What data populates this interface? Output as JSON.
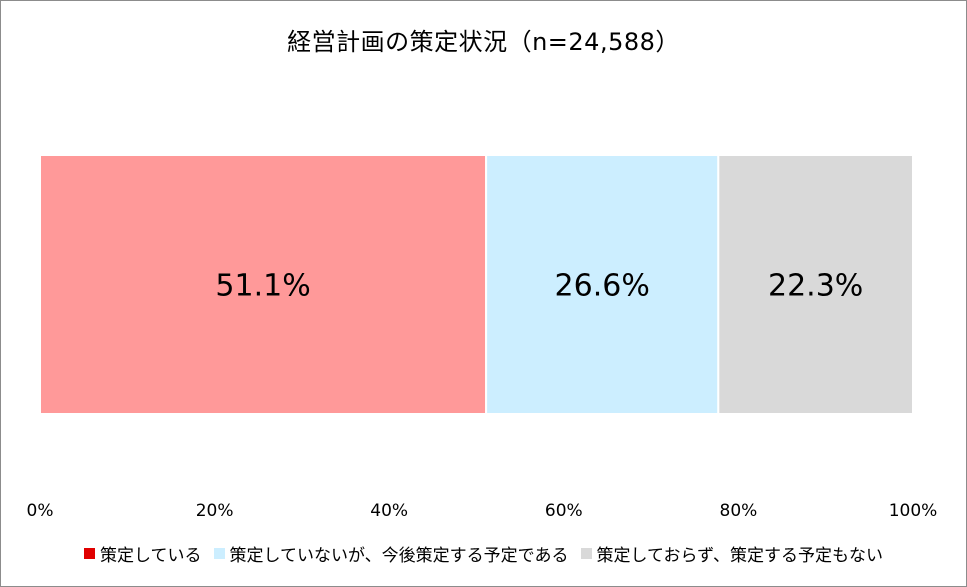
{
  "chart_data": {
    "type": "bar",
    "orientation": "horizontal",
    "stacked": true,
    "percent_stacked": true,
    "title": "経営計画の策定状況（n=24,588）",
    "categories": [
      ""
    ],
    "series": [
      {
        "name": "策定している",
        "values": [
          51.1
        ],
        "label": "51.1%",
        "color": "#ff9999",
        "legend_color": "#e00000"
      },
      {
        "name": "策定していないが、今後策定する予定である",
        "values": [
          26.6
        ],
        "label": "26.6%",
        "color": "#cceeff",
        "legend_color": "#cceeff"
      },
      {
        "name": "策定しておらず、策定する予定もない",
        "values": [
          22.3
        ],
        "label": "22.3%",
        "color": "#d9d9d9",
        "legend_color": "#d9d9d9"
      }
    ],
    "xlim": [
      0,
      100
    ],
    "xticks": [
      0,
      20,
      40,
      60,
      80,
      100
    ],
    "xtick_labels": [
      "0%",
      "20%",
      "40%",
      "60%",
      "80%",
      "100%"
    ],
    "grid": false,
    "legend_position": "bottom"
  }
}
